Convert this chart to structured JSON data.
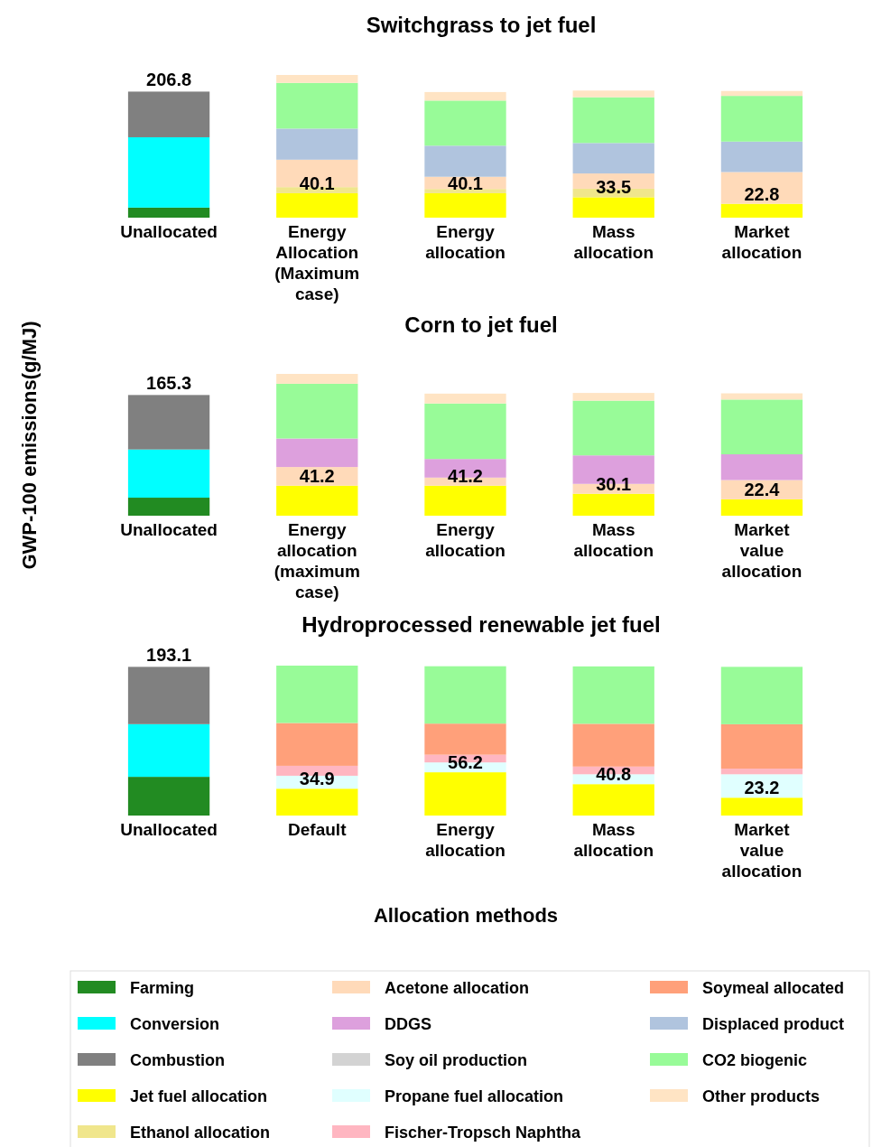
{
  "chart_data": [
    {
      "type": "bar",
      "title": "Switchgrass to jet fuel",
      "stacked": true,
      "tick_labels": "x",
      "categories": [
        "Unallocated",
        "Energy Allocation (Maximum case)",
        "Energy allocation",
        "Mass allocation",
        "Market allocation"
      ],
      "totals": [
        "206.8",
        null,
        null,
        null,
        null
      ],
      "series": [
        {
          "color": "#228b22",
          "values": [
            16.5,
            null,
            null,
            null,
            null
          ]
        },
        {
          "color": "#00ffff",
          "values": [
            115.4,
            null,
            null,
            null,
            null
          ]
        },
        {
          "color": "#808080",
          "values": [
            74.9,
            null,
            null,
            null,
            null
          ]
        },
        {
          "color": "#ffff00",
          "values": [
            null,
            40.1,
            40.1,
            33.5,
            22.8
          ],
          "value_labels": [
            null,
            "40.1",
            "40.1",
            "33.5",
            "22.8"
          ]
        },
        {
          "color": "#f0e68c",
          "values": [
            null,
            10,
            7,
            14,
            null
          ]
        },
        {
          "color": "#ffdab9",
          "values": [
            null,
            45,
            20,
            25,
            52
          ]
        },
        {
          "color": "#b0c4de",
          "values": [
            null,
            51,
            51,
            50,
            50
          ]
        },
        {
          "color": "#98fb98",
          "values": [
            null,
            75,
            74,
            75,
            75
          ]
        },
        {
          "color": "#ffe4c4",
          "values": [
            null,
            13,
            14,
            11,
            8
          ]
        }
      ]
    },
    {
      "type": "bar",
      "title": "Corn to jet fuel",
      "ylabel": "GWP-100 emissions(g/MJ)",
      "stacked": true,
      "tick_labels": "x",
      "categories": [
        "Unallocated",
        "Energy allocation (maximum case)",
        "Energy allocation",
        "Mass allocation",
        "Market value allocation"
      ],
      "totals": [
        "165.3",
        null,
        null,
        null,
        null
      ],
      "series": [
        {
          "color": "#228b22",
          "values": [
            24.7,
            null,
            null,
            null,
            null
          ]
        },
        {
          "color": "#00ffff",
          "values": [
            66,
            null,
            null,
            null,
            null
          ]
        },
        {
          "color": "#808080",
          "values": [
            74.6,
            null,
            null,
            null,
            null
          ]
        },
        {
          "color": "#ffff00",
          "values": [
            null,
            41.2,
            41.2,
            30.1,
            22.4
          ],
          "value_labels": [
            null,
            "41.2",
            "41.2",
            "30.1",
            "22.4"
          ]
        },
        {
          "color": "#ffdab9",
          "values": [
            null,
            25.5,
            11,
            13.5,
            26.4
          ]
        },
        {
          "color": "#dda0dd",
          "values": [
            null,
            39,
            25.5,
            39,
            35.3
          ]
        },
        {
          "color": "#98fb98",
          "values": [
            null,
            75,
            76,
            75,
            75
          ]
        },
        {
          "color": "#ffe4c4",
          "values": [
            null,
            13.5,
            13.5,
            10.5,
            8.5
          ]
        }
      ]
    },
    {
      "type": "bar",
      "title": "Hydroprocessed renewable jet fuel",
      "xlabel": "Allocation methods",
      "stacked": true,
      "tick_labels": "x",
      "legend": "bottom",
      "categories": [
        "Unallocated",
        "Default",
        "Energy allocation",
        "Mass allocation",
        "Market value allocation"
      ],
      "totals": [
        "193.1",
        null,
        null,
        null,
        null
      ],
      "series": [
        {
          "name": "Farming",
          "color": "#228b22",
          "values": [
            50.3,
            null,
            null,
            null,
            null
          ]
        },
        {
          "name": "Conversion",
          "color": "#00ffff",
          "values": [
            68.4,
            null,
            null,
            null,
            null
          ]
        },
        {
          "name": "Combustion",
          "color": "#808080",
          "values": [
            74.4,
            null,
            null,
            null,
            null
          ]
        },
        {
          "name": "Jet fuel allocation",
          "color": "#ffff00",
          "values": [
            null,
            34.9,
            56.2,
            40.8,
            23.2
          ],
          "value_labels": [
            null,
            "34.9",
            "56.2",
            "40.8",
            "23.2"
          ]
        },
        {
          "name": "Ethanol allocation",
          "color": "#f0e68c",
          "values": [
            null,
            null,
            null,
            null,
            null
          ]
        },
        {
          "name": "Acetone allocation",
          "color": "#ffdab9",
          "values": [
            null,
            null,
            null,
            null,
            null
          ]
        },
        {
          "name": "DDGS",
          "color": "#dda0dd",
          "values": [
            null,
            null,
            null,
            null,
            null
          ]
        },
        {
          "name": "Soy oil production",
          "color": "#d3d3d3",
          "values": [
            null,
            null,
            null,
            null,
            null
          ]
        },
        {
          "name": "Propane fuel allocation",
          "color": "#e0ffff",
          "values": [
            null,
            16.8,
            12.8,
            12.8,
            30.4
          ]
        },
        {
          "name": "Fischer-Tropsch Naphtha",
          "color": "#ffb6c1",
          "values": [
            null,
            12.9,
            10,
            10,
            7.3
          ]
        },
        {
          "name": "Soymeal allocated",
          "color": "#ffa07a",
          "values": [
            null,
            55.6,
            40.4,
            55.6,
            57.7
          ]
        },
        {
          "name": "Displaced product",
          "color": "#b0c4de",
          "values": [
            null,
            null,
            null,
            null,
            null
          ]
        },
        {
          "name": "CO2 biogenic",
          "color": "#98fb98",
          "values": [
            null,
            74.5,
            74.5,
            74.5,
            74.5
          ]
        },
        {
          "name": "Other products",
          "color": "#ffe4c4",
          "values": [
            null,
            null,
            null,
            null,
            null
          ]
        }
      ]
    }
  ]
}
